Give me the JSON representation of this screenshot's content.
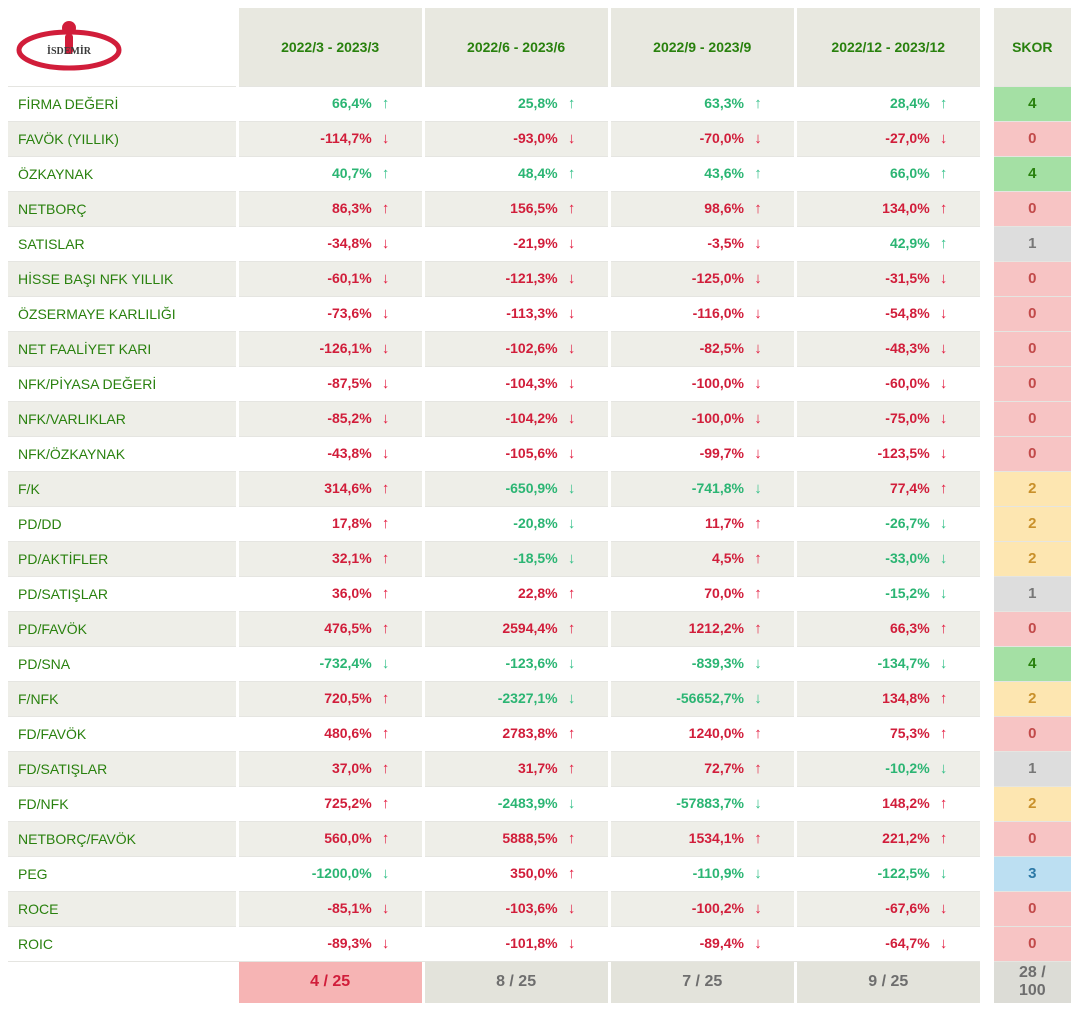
{
  "company": {
    "name": "İSDEMİR"
  },
  "colors": {
    "header_bg": "#e8e8e0",
    "header_text": "#29810e",
    "row_alt": "#eeeee8",
    "metric_text": "#29810e",
    "value_red": "#d11d3a",
    "value_green": "#2bb573",
    "arrow_red": "#e31b3f",
    "arrow_green": "#33c088",
    "footer_bg": "#e3e3db",
    "footer_highlight_bg": "#f6b4b4",
    "skor_bg": {
      "4": "#a4e0a4",
      "3": "#bcdff2",
      "2": "#fde6b1",
      "1": "#dddddd",
      "0": "#f7c4c4"
    }
  },
  "periods": [
    "2022/3 - 2023/3",
    "2022/6 - 2023/6",
    "2022/9 - 2023/9",
    "2022/12 - 2023/12"
  ],
  "skor_header": "SKOR",
  "rows": [
    {
      "metric": "FİRMA DEĞERİ",
      "cells": [
        {
          "v": "66,4%",
          "d": "gup"
        },
        {
          "v": "25,8%",
          "d": "gup"
        },
        {
          "v": "63,3%",
          "d": "gup"
        },
        {
          "v": "28,4%",
          "d": "gup"
        }
      ],
      "skor": 4
    },
    {
      "metric": "FAVÖK (YILLIK)",
      "cells": [
        {
          "v": "-114,7%",
          "d": "down"
        },
        {
          "v": "-93,0%",
          "d": "down"
        },
        {
          "v": "-70,0%",
          "d": "down"
        },
        {
          "v": "-27,0%",
          "d": "down"
        }
      ],
      "skor": 0
    },
    {
      "metric": "ÖZKAYNAK",
      "cells": [
        {
          "v": "40,7%",
          "d": "gup"
        },
        {
          "v": "48,4%",
          "d": "gup"
        },
        {
          "v": "43,6%",
          "d": "gup"
        },
        {
          "v": "66,0%",
          "d": "gup"
        }
      ],
      "skor": 4
    },
    {
      "metric": "NETBORÇ",
      "cells": [
        {
          "v": "86,3%",
          "d": "up"
        },
        {
          "v": "156,5%",
          "d": "up"
        },
        {
          "v": "98,6%",
          "d": "up"
        },
        {
          "v": "134,0%",
          "d": "up"
        }
      ],
      "skor": 0
    },
    {
      "metric": "SATISLAR",
      "cells": [
        {
          "v": "-34,8%",
          "d": "down"
        },
        {
          "v": "-21,9%",
          "d": "down"
        },
        {
          "v": "-3,5%",
          "d": "down"
        },
        {
          "v": "42,9%",
          "d": "gup"
        }
      ],
      "skor": 1
    },
    {
      "metric": "HİSSE BAŞI NFK YILLIK",
      "cells": [
        {
          "v": "-60,1%",
          "d": "down"
        },
        {
          "v": "-121,3%",
          "d": "down"
        },
        {
          "v": "-125,0%",
          "d": "down"
        },
        {
          "v": "-31,5%",
          "d": "down"
        }
      ],
      "skor": 0
    },
    {
      "metric": "ÖZSERMAYE KARLILIĞI",
      "cells": [
        {
          "v": "-73,6%",
          "d": "down"
        },
        {
          "v": "-113,3%",
          "d": "down"
        },
        {
          "v": "-116,0%",
          "d": "down"
        },
        {
          "v": "-54,8%",
          "d": "down"
        }
      ],
      "skor": 0
    },
    {
      "metric": "NET FAALİYET KARI",
      "cells": [
        {
          "v": "-126,1%",
          "d": "down"
        },
        {
          "v": "-102,6%",
          "d": "down"
        },
        {
          "v": "-82,5%",
          "d": "down"
        },
        {
          "v": "-48,3%",
          "d": "down"
        }
      ],
      "skor": 0
    },
    {
      "metric": "NFK/PİYASA DEĞERİ",
      "cells": [
        {
          "v": "-87,5%",
          "d": "down"
        },
        {
          "v": "-104,3%",
          "d": "down"
        },
        {
          "v": "-100,0%",
          "d": "down"
        },
        {
          "v": "-60,0%",
          "d": "down"
        }
      ],
      "skor": 0
    },
    {
      "metric": "NFK/VARLIKLAR",
      "cells": [
        {
          "v": "-85,2%",
          "d": "down"
        },
        {
          "v": "-104,2%",
          "d": "down"
        },
        {
          "v": "-100,0%",
          "d": "down"
        },
        {
          "v": "-75,0%",
          "d": "down"
        }
      ],
      "skor": 0
    },
    {
      "metric": "NFK/ÖZKAYNAK",
      "cells": [
        {
          "v": "-43,8%",
          "d": "down"
        },
        {
          "v": "-105,6%",
          "d": "down"
        },
        {
          "v": "-99,7%",
          "d": "down"
        },
        {
          "v": "-123,5%",
          "d": "down"
        }
      ],
      "skor": 0
    },
    {
      "metric": "F/K",
      "cells": [
        {
          "v": "314,6%",
          "d": "up"
        },
        {
          "v": "-650,9%",
          "d": "gdn"
        },
        {
          "v": "-741,8%",
          "d": "gdn"
        },
        {
          "v": "77,4%",
          "d": "up"
        }
      ],
      "skor": 2
    },
    {
      "metric": "PD/DD",
      "cells": [
        {
          "v": "17,8%",
          "d": "up"
        },
        {
          "v": "-20,8%",
          "d": "gdn"
        },
        {
          "v": "11,7%",
          "d": "up"
        },
        {
          "v": "-26,7%",
          "d": "gdn"
        }
      ],
      "skor": 2
    },
    {
      "metric": "PD/AKTİFLER",
      "cells": [
        {
          "v": "32,1%",
          "d": "up"
        },
        {
          "v": "-18,5%",
          "d": "gdn"
        },
        {
          "v": "4,5%",
          "d": "up"
        },
        {
          "v": "-33,0%",
          "d": "gdn"
        }
      ],
      "skor": 2
    },
    {
      "metric": "PD/SATIŞLAR",
      "cells": [
        {
          "v": "36,0%",
          "d": "up"
        },
        {
          "v": "22,8%",
          "d": "up"
        },
        {
          "v": "70,0%",
          "d": "up"
        },
        {
          "v": "-15,2%",
          "d": "gdn"
        }
      ],
      "skor": 1
    },
    {
      "metric": "PD/FAVÖK",
      "cells": [
        {
          "v": "476,5%",
          "d": "up"
        },
        {
          "v": "2594,4%",
          "d": "up"
        },
        {
          "v": "1212,2%",
          "d": "up"
        },
        {
          "v": "66,3%",
          "d": "up"
        }
      ],
      "skor": 0
    },
    {
      "metric": "PD/SNA",
      "cells": [
        {
          "v": "-732,4%",
          "d": "gdn"
        },
        {
          "v": "-123,6%",
          "d": "gdn"
        },
        {
          "v": "-839,3%",
          "d": "gdn"
        },
        {
          "v": "-134,7%",
          "d": "gdn"
        }
      ],
      "skor": 4
    },
    {
      "metric": "F/NFK",
      "cells": [
        {
          "v": "720,5%",
          "d": "up"
        },
        {
          "v": "-2327,1%",
          "d": "gdn"
        },
        {
          "v": "-56652,7%",
          "d": "gdn"
        },
        {
          "v": "134,8%",
          "d": "up"
        }
      ],
      "skor": 2
    },
    {
      "metric": "FD/FAVÖK",
      "cells": [
        {
          "v": "480,6%",
          "d": "up"
        },
        {
          "v": "2783,8%",
          "d": "up"
        },
        {
          "v": "1240,0%",
          "d": "up"
        },
        {
          "v": "75,3%",
          "d": "up"
        }
      ],
      "skor": 0
    },
    {
      "metric": "FD/SATIŞLAR",
      "cells": [
        {
          "v": "37,0%",
          "d": "up"
        },
        {
          "v": "31,7%",
          "d": "up"
        },
        {
          "v": "72,7%",
          "d": "up"
        },
        {
          "v": "-10,2%",
          "d": "gdn"
        }
      ],
      "skor": 1
    },
    {
      "metric": "FD/NFK",
      "cells": [
        {
          "v": "725,2%",
          "d": "up"
        },
        {
          "v": "-2483,9%",
          "d": "gdn"
        },
        {
          "v": "-57883,7%",
          "d": "gdn"
        },
        {
          "v": "148,2%",
          "d": "up"
        }
      ],
      "skor": 2
    },
    {
      "metric": "NETBORÇ/FAVÖK",
      "cells": [
        {
          "v": "560,0%",
          "d": "up"
        },
        {
          "v": "5888,5%",
          "d": "up"
        },
        {
          "v": "1534,1%",
          "d": "up"
        },
        {
          "v": "221,2%",
          "d": "up"
        }
      ],
      "skor": 0
    },
    {
      "metric": "PEG",
      "cells": [
        {
          "v": "-1200,0%",
          "d": "gdn"
        },
        {
          "v": "350,0%",
          "d": "up"
        },
        {
          "v": "-110,9%",
          "d": "gdn"
        },
        {
          "v": "-122,5%",
          "d": "gdn"
        }
      ],
      "skor": 3
    },
    {
      "metric": "ROCE",
      "cells": [
        {
          "v": "-85,1%",
          "d": "down"
        },
        {
          "v": "-103,6%",
          "d": "down"
        },
        {
          "v": "-100,2%",
          "d": "down"
        },
        {
          "v": "-67,6%",
          "d": "down"
        }
      ],
      "skor": 0
    },
    {
      "metric": "ROIC",
      "cells": [
        {
          "v": "-89,3%",
          "d": "down"
        },
        {
          "v": "-101,8%",
          "d": "down"
        },
        {
          "v": "-89,4%",
          "d": "down"
        },
        {
          "v": "-64,7%",
          "d": "down"
        }
      ],
      "skor": 0
    }
  ],
  "footer": {
    "values": [
      "4 / 25",
      "8 / 25",
      "7 / 25",
      "9 / 25"
    ],
    "highlight_index": 0,
    "total": "28 / 100"
  }
}
